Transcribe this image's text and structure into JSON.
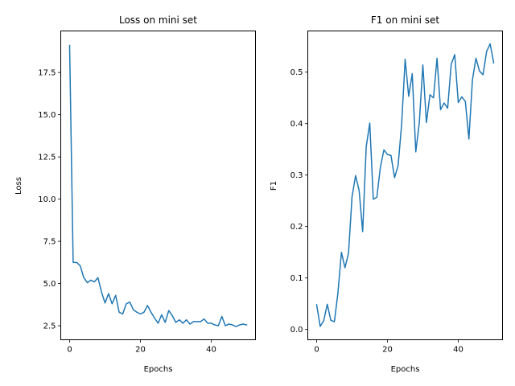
{
  "chart_data": [
    {
      "type": "line",
      "title": "Loss on mini set",
      "xlabel": "Epochs",
      "ylabel": "Loss",
      "xlim": [
        -2.5,
        52.5
      ],
      "ylim": [
        1.67,
        19.96
      ],
      "xticks": [
        0,
        20,
        40
      ],
      "yticks": [
        2.5,
        5.0,
        7.5,
        10.0,
        12.5,
        15.0,
        17.5
      ],
      "ytick_labels": [
        "2.5",
        "5.0",
        "7.5",
        "10.0",
        "12.5",
        "15.0",
        "17.5"
      ],
      "grid": false,
      "color": "#1f77b4",
      "series": [
        {
          "x": [
            0,
            1,
            2,
            3,
            4,
            5,
            6,
            7,
            8,
            9,
            10,
            11,
            12,
            13,
            14,
            15,
            16,
            17,
            18,
            19,
            20,
            21,
            22,
            23,
            24,
            25,
            26,
            27,
            28,
            29,
            30,
            31,
            32,
            33,
            34,
            35,
            36,
            37,
            38,
            39,
            40,
            41,
            42,
            43,
            44,
            45,
            46,
            47,
            48,
            49,
            50
          ],
          "values": [
            19.1,
            6.25,
            6.25,
            6.05,
            5.35,
            5.05,
            5.2,
            5.1,
            5.35,
            4.5,
            3.85,
            4.4,
            3.8,
            4.3,
            3.3,
            3.2,
            3.8,
            3.9,
            3.45,
            3.3,
            3.2,
            3.3,
            3.7,
            3.3,
            2.95,
            2.65,
            3.15,
            2.7,
            3.4,
            3.1,
            2.7,
            2.85,
            2.65,
            2.85,
            2.6,
            2.75,
            2.75,
            2.75,
            2.9,
            2.65,
            2.65,
            2.55,
            2.5,
            3.05,
            2.5,
            2.6,
            2.55,
            2.45,
            2.55,
            2.6,
            2.55
          ]
        }
      ]
    },
    {
      "type": "line",
      "title": "F1 on mini set",
      "xlabel": "Epochs",
      "ylabel": "F1",
      "xlim": [
        -2.5,
        52.5
      ],
      "ylim": [
        -0.02,
        0.58
      ],
      "xticks": [
        0,
        20,
        40
      ],
      "yticks": [
        0.0,
        0.1,
        0.2,
        0.3,
        0.4,
        0.5
      ],
      "ytick_labels": [
        "0.0",
        "0.1",
        "0.2",
        "0.3",
        "0.4",
        "0.5"
      ],
      "grid": false,
      "color": "#1f77b4",
      "series": [
        {
          "x": [
            0,
            1,
            2,
            3,
            4,
            5,
            6,
            7,
            8,
            9,
            10,
            11,
            12,
            13,
            14,
            15,
            16,
            17,
            18,
            19,
            20,
            21,
            22,
            23,
            24,
            25,
            26,
            27,
            28,
            29,
            30,
            31,
            32,
            33,
            34,
            35,
            36,
            37,
            38,
            39,
            40,
            41,
            42,
            43,
            44,
            45,
            46,
            47,
            48,
            49,
            50
          ],
          "values": [
            0.048,
            0.006,
            0.017,
            0.049,
            0.018,
            0.015,
            0.07,
            0.15,
            0.12,
            0.148,
            0.258,
            0.299,
            0.27,
            0.19,
            0.355,
            0.401,
            0.253,
            0.257,
            0.315,
            0.349,
            0.34,
            0.338,
            0.295,
            0.318,
            0.398,
            0.525,
            0.453,
            0.497,
            0.345,
            0.402,
            0.514,
            0.402,
            0.456,
            0.45,
            0.527,
            0.427,
            0.44,
            0.43,
            0.515,
            0.534,
            0.441,
            0.452,
            0.443,
            0.37,
            0.485,
            0.527,
            0.502,
            0.495,
            0.54,
            0.555,
            0.518
          ]
        }
      ]
    }
  ]
}
